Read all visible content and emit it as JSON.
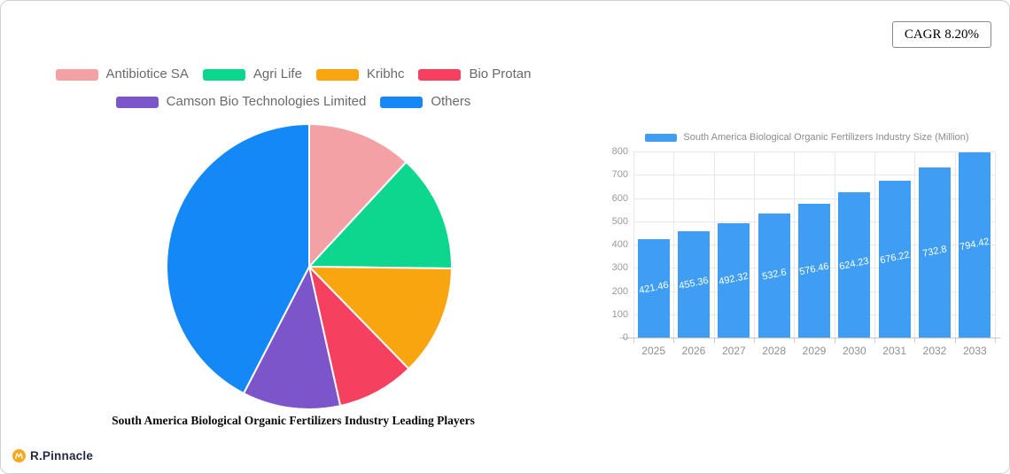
{
  "header": {
    "cagr_badge": "CAGR 8.20%"
  },
  "footer": {
    "brand": "R.Pinnacle",
    "brand_icon": "orange-circle-wave-icon"
  },
  "colors": {
    "bar_blue": "#3f9ef3",
    "legend_text": "#6a6a6a",
    "axis_text": "#999999",
    "grid_line": "#e8e8e8",
    "axis_line": "#c9c9c9"
  },
  "chart_data": [
    {
      "type": "pie",
      "title": "South America Biological Organic Fertilizers Industry Leading Players",
      "start_angle": "12-oclock",
      "direction": "clockwise",
      "legend_position": "top",
      "legend_rows": [
        4,
        2
      ],
      "slices": [
        {
          "label": "Antibiotice SA",
          "pct": 11.9,
          "color": "#f4a1a6"
        },
        {
          "label": "Agri Life",
          "pct": 13.3,
          "color": "#0dd78f"
        },
        {
          "label": "Kribhc",
          "pct": 12.5,
          "color": "#f9a510"
        },
        {
          "label": "Bio Protan",
          "pct": 8.8,
          "color": "#f5405f"
        },
        {
          "label": "Camson Bio Technologies Limited",
          "pct": 11.1,
          "color": "#7c55ca"
        },
        {
          "label": "Others",
          "pct": 42.4,
          "color": "#1488f6"
        }
      ]
    },
    {
      "type": "bar",
      "legend_label": "South America Biological Organic Fertilizers Industry Size (Million)",
      "categories": [
        "2025",
        "2026",
        "2027",
        "2028",
        "2029",
        "2030",
        "2031",
        "2032",
        "2033"
      ],
      "values": [
        421.46,
        455.36,
        492.32,
        532.6,
        576.46,
        624.23,
        676.22,
        732.8,
        794.42
      ],
      "value_labels": [
        "421.46",
        "455.36",
        "492.32",
        "532.6",
        "576.46",
        "624.23",
        "676.22",
        "732.8",
        "794.42"
      ],
      "bar_color": "#3f9ef3",
      "ylim": [
        0,
        800
      ],
      "yticks": [
        0,
        100,
        200,
        300,
        400,
        500,
        600,
        700,
        800
      ],
      "grid": true,
      "value_label_style": "white-inside-rotated"
    }
  ]
}
